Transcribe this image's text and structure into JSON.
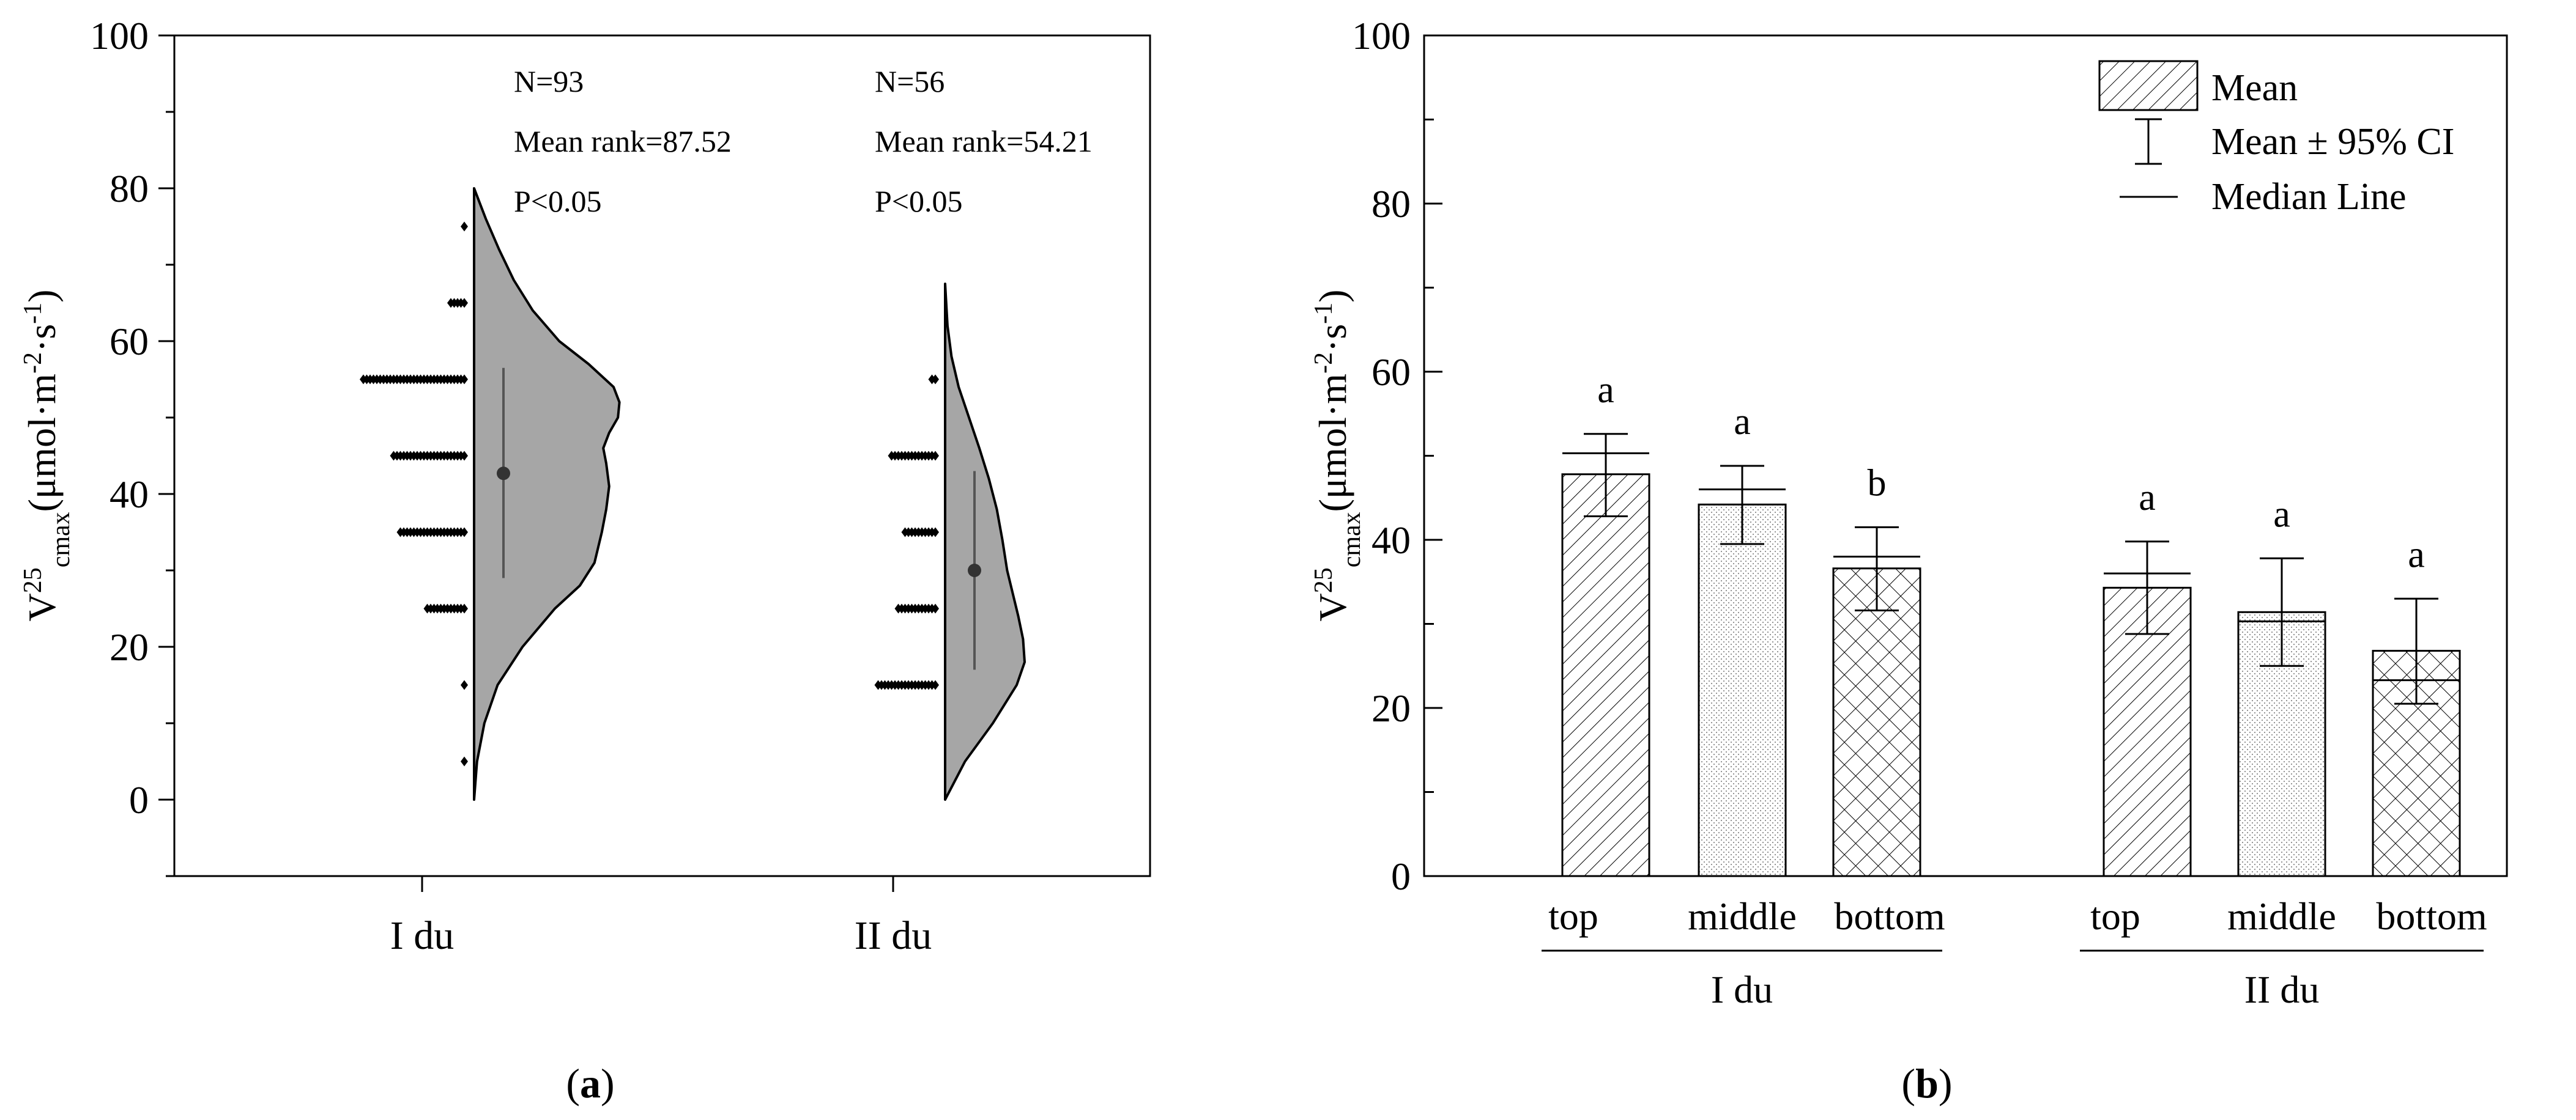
{
  "chart_data": [
    {
      "type": "violin",
      "panel_label": "a",
      "ylabel": "V",
      "ylabel_sup": "25",
      "ylabel_sub": "cmax",
      "ylabel_unit_prefix": "(μmol·m",
      "ylabel_unit_sup1": "-2",
      "ylabel_unit_mid": "·s",
      "ylabel_unit_sup2": "-1",
      "ylabel_unit_suffix": ")",
      "ylim": [
        -10,
        100
      ],
      "yticks": [
        "0",
        "20",
        "40",
        "60",
        "80",
        "100"
      ],
      "groups": [
        {
          "name": "I du",
          "stats": {
            "n": "N=93",
            "rank": "Mean rank=87.52",
            "p": "P<0.05"
          },
          "mean": 42.7,
          "whisker": [
            29,
            56.5
          ],
          "density_range": [
            0,
            80
          ],
          "density": [
            [
              0,
              0
            ],
            [
              5,
              0.02
            ],
            [
              10,
              0.07
            ],
            [
              15,
              0.16
            ],
            [
              20,
              0.33
            ],
            [
              25,
              0.55
            ],
            [
              28,
              0.72
            ],
            [
              31,
              0.82
            ],
            [
              35,
              0.87
            ],
            [
              38,
              0.9
            ],
            [
              41,
              0.92
            ],
            [
              44,
              0.9
            ],
            [
              46,
              0.88
            ],
            [
              48,
              0.92
            ],
            [
              50,
              0.98
            ],
            [
              52,
              0.99
            ],
            [
              54,
              0.95
            ],
            [
              57,
              0.78
            ],
            [
              60,
              0.58
            ],
            [
              64,
              0.4
            ],
            [
              68,
              0.27
            ],
            [
              72,
              0.17
            ],
            [
              76,
              0.08
            ],
            [
              80,
              0
            ]
          ],
          "points": [
            {
              "value": 5,
              "count": 1
            },
            {
              "value": 15,
              "count": 1
            },
            {
              "value": 25,
              "count": 12
            },
            {
              "value": 35,
              "count": 20
            },
            {
              "value": 45,
              "count": 22
            },
            {
              "value": 55,
              "count": 31
            },
            {
              "value": 65,
              "count": 5
            },
            {
              "value": 75,
              "count": 1
            }
          ]
        },
        {
          "name": "II du",
          "stats": {
            "n": "N=56",
            "rank": "Mean rank=54.21",
            "p": "P<0.05"
          },
          "mean": 30,
          "whisker": [
            17,
            43
          ],
          "density_range": [
            0,
            67.5
          ],
          "density": [
            [
              0,
              0
            ],
            [
              5,
              0.25
            ],
            [
              10,
              0.6
            ],
            [
              15,
              0.9
            ],
            [
              18,
              1.0
            ],
            [
              21,
              0.98
            ],
            [
              24,
              0.92
            ],
            [
              27,
              0.85
            ],
            [
              30,
              0.78
            ],
            [
              34,
              0.72
            ],
            [
              38,
              0.65
            ],
            [
              42,
              0.55
            ],
            [
              46,
              0.43
            ],
            [
              50,
              0.3
            ],
            [
              54,
              0.17
            ],
            [
              58,
              0.08
            ],
            [
              62,
              0.03
            ],
            [
              67.5,
              0
            ]
          ],
          "points": [
            {
              "value": 15,
              "count": 18
            },
            {
              "value": 25,
              "count": 12
            },
            {
              "value": 35,
              "count": 10
            },
            {
              "value": 45,
              "count": 14
            },
            {
              "value": 55,
              "count": 2
            }
          ]
        }
      ]
    },
    {
      "type": "bar",
      "panel_label": "b",
      "ylabel": "V",
      "ylabel_sup": "25",
      "ylabel_sub": "cmax",
      "ylabel_unit_prefix": "(μmol·m",
      "ylabel_unit_sup1": "-2",
      "ylabel_unit_mid": "·s",
      "ylabel_unit_sup2": "-1",
      "ylabel_unit_suffix": ")",
      "ylim": [
        0,
        100
      ],
      "yticks": [
        "0",
        "20",
        "40",
        "60",
        "80",
        "100"
      ],
      "legend": {
        "mean": "Mean",
        "ci": "Mean ± 95% CI",
        "median": "Median Line",
        "position": "top-right"
      },
      "groups": [
        {
          "name": "I du",
          "bars": [
            {
              "category": "top",
              "mean": 47.8,
              "ci": [
                42.8,
                52.6
              ],
              "median": 50.3,
              "sig": "a",
              "pattern": "diag"
            },
            {
              "category": "middle",
              "mean": 44.2,
              "ci": [
                39.5,
                48.8
              ],
              "median": 46.0,
              "sig": "a",
              "pattern": "dots"
            },
            {
              "category": "bottom",
              "mean": 36.6,
              "ci": [
                31.6,
                41.5
              ],
              "median": 38.0,
              "sig": "b",
              "pattern": "cross"
            }
          ]
        },
        {
          "name": "II du",
          "bars": [
            {
              "category": "top",
              "mean": 34.3,
              "ci": [
                28.8,
                39.8
              ],
              "median": 36.0,
              "sig": "a",
              "pattern": "diag"
            },
            {
              "category": "middle",
              "mean": 31.4,
              "ci": [
                25.0,
                37.8
              ],
              "median": 30.3,
              "sig": "a",
              "pattern": "dots"
            },
            {
              "category": "bottom",
              "mean": 26.8,
              "ci": [
                20.5,
                33.0
              ],
              "median": 23.3,
              "sig": "a",
              "pattern": "cross"
            }
          ]
        }
      ]
    }
  ],
  "captions": {
    "a": "a",
    "b": "b"
  }
}
